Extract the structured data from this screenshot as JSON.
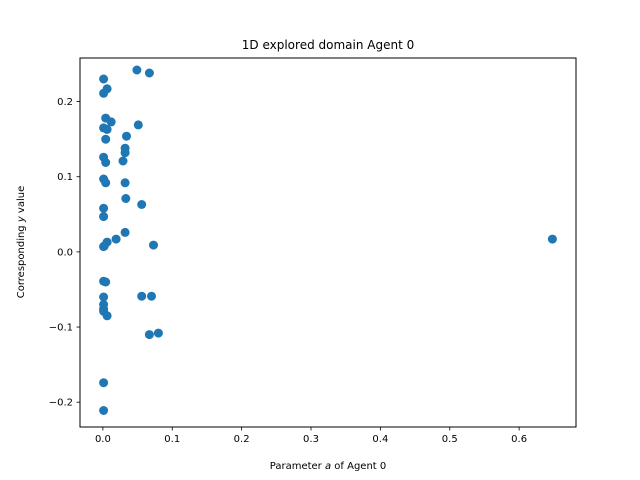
{
  "chart_data": {
    "type": "scatter",
    "title": "1D explored domain Agent 0",
    "xlabel": "Parameter a of Agent 0",
    "xlabel_parts": [
      "Parameter ",
      "a",
      " of Agent 0"
    ],
    "ylabel": "Corresponding y value",
    "ylabel_parts": [
      "Corresponding ",
      "y",
      " value"
    ],
    "xlim": [
      -0.033,
      0.682
    ],
    "ylim": [
      -0.233,
      0.258
    ],
    "xticks": [
      0.0,
      0.1,
      0.2,
      0.3,
      0.4,
      0.5,
      0.6
    ],
    "xtick_labels": [
      "0.0",
      "0.1",
      "0.2",
      "0.3",
      "0.4",
      "0.5",
      "0.6"
    ],
    "yticks": [
      -0.2,
      -0.1,
      0.0,
      0.1,
      0.2
    ],
    "ytick_labels": [
      "−0.2",
      "−0.1",
      "0.0",
      "0.1",
      "0.2"
    ],
    "grid": false,
    "marker_color": "#1f77b4",
    "series": [
      {
        "x": [
          0.049,
          0.067,
          0.001,
          0.006,
          0.001,
          0.004,
          0.012,
          0.051,
          0.001,
          0.006,
          0.034,
          0.004,
          0.032,
          0.032,
          0.001,
          0.029,
          0.004,
          0.001,
          0.004,
          0.032,
          0.033,
          0.056,
          0.001,
          0.001,
          0.032,
          0.019,
          0.006,
          0.073,
          0.002,
          0.001,
          0.648,
          0.001,
          0.004,
          0.056,
          0.07,
          0.001,
          0.001,
          0.001,
          0.001,
          0.006,
          0.067,
          0.08,
          0.001,
          0.001
        ],
        "y": [
          0.242,
          0.238,
          0.23,
          0.217,
          0.211,
          0.178,
          0.173,
          0.169,
          0.165,
          0.163,
          0.154,
          0.15,
          0.138,
          0.132,
          0.126,
          0.121,
          0.119,
          0.097,
          0.092,
          0.092,
          0.071,
          0.063,
          0.058,
          0.047,
          0.026,
          0.017,
          0.013,
          0.009,
          0.008,
          0.007,
          0.017,
          -0.039,
          -0.04,
          -0.059,
          -0.059,
          -0.06,
          -0.07,
          -0.076,
          -0.079,
          -0.085,
          -0.11,
          -0.108,
          -0.174,
          -0.211
        ]
      }
    ]
  }
}
